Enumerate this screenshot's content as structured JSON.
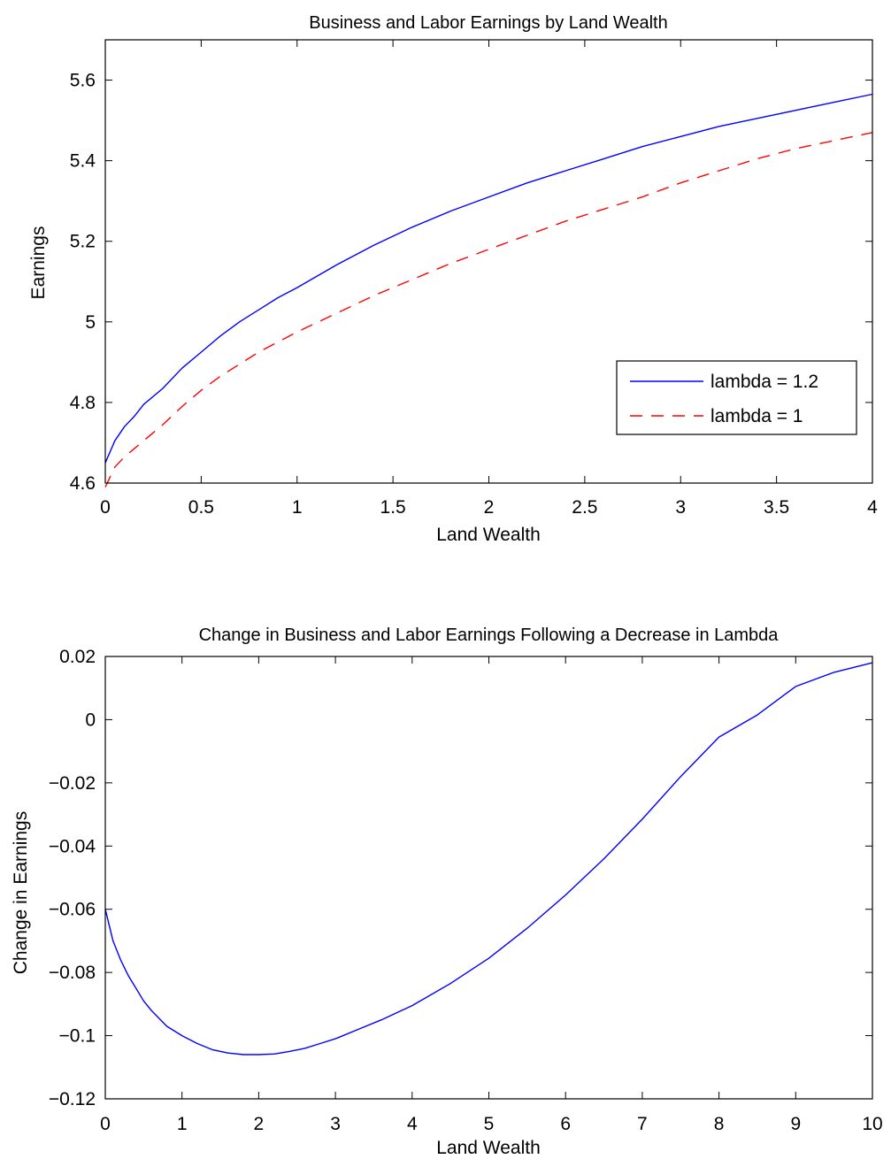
{
  "chart_data": [
    {
      "type": "line",
      "title": "Business and Labor Earnings by Land Wealth",
      "xlabel": "Land Wealth",
      "ylabel": "Earnings",
      "xlim": [
        0,
        4
      ],
      "ylim": [
        4.6,
        5.7
      ],
      "xticks": [
        0,
        0.5,
        1,
        1.5,
        2,
        2.5,
        3,
        3.5,
        4
      ],
      "xtick_labels": [
        "0",
        "0.5",
        "1",
        "1.5",
        "2",
        "2.5",
        "3",
        "3.5",
        "4"
      ],
      "yticks": [
        4.6,
        4.8,
        5.0,
        5.2,
        5.4,
        5.6
      ],
      "ytick_labels": [
        "4.6",
        "4.8",
        "5",
        "5.2",
        "5.4",
        "5.6"
      ],
      "grid": false,
      "legend_position": "lower-right",
      "series": [
        {
          "name": "lambda = 1.2",
          "color": "#0000ff",
          "style": "solid",
          "x": [
            0,
            0.05,
            0.1,
            0.15,
            0.2,
            0.3,
            0.4,
            0.5,
            0.6,
            0.7,
            0.8,
            0.9,
            1.0,
            1.2,
            1.4,
            1.6,
            1.8,
            2.0,
            2.2,
            2.4,
            2.6,
            2.8,
            3.0,
            3.2,
            3.4,
            3.6,
            3.8,
            4.0
          ],
          "y": [
            4.65,
            4.705,
            4.74,
            4.765,
            4.795,
            4.835,
            4.885,
            4.925,
            4.965,
            5.0,
            5.03,
            5.06,
            5.085,
            5.14,
            5.19,
            5.235,
            5.275,
            5.31,
            5.345,
            5.375,
            5.405,
            5.435,
            5.46,
            5.485,
            5.505,
            5.525,
            5.545,
            5.565
          ]
        },
        {
          "name": "lambda = 1",
          "color": "#ff0000",
          "style": "dashed",
          "x": [
            0,
            0.05,
            0.1,
            0.15,
            0.2,
            0.3,
            0.4,
            0.5,
            0.6,
            0.7,
            0.8,
            0.9,
            1.0,
            1.2,
            1.4,
            1.6,
            1.8,
            2.0,
            2.2,
            2.4,
            2.6,
            2.8,
            3.0,
            3.2,
            3.4,
            3.6,
            3.8,
            4.0
          ],
          "y": [
            4.59,
            4.64,
            4.665,
            4.685,
            4.705,
            4.745,
            4.79,
            4.83,
            4.865,
            4.895,
            4.925,
            4.95,
            4.975,
            5.02,
            5.065,
            5.105,
            5.145,
            5.18,
            5.215,
            5.25,
            5.28,
            5.31,
            5.345,
            5.375,
            5.405,
            5.43,
            5.45,
            5.47
          ]
        }
      ]
    },
    {
      "type": "line",
      "title": "Change in Business and Labor Earnings Following a Decrease in Lambda",
      "xlabel": "Land Wealth",
      "ylabel": "Change in Earnings",
      "xlim": [
        0,
        10
      ],
      "ylim": [
        -0.12,
        0.02
      ],
      "xticks": [
        0,
        1,
        2,
        3,
        4,
        5,
        6,
        7,
        8,
        9,
        10
      ],
      "xtick_labels": [
        "0",
        "1",
        "2",
        "3",
        "4",
        "5",
        "6",
        "7",
        "8",
        "9",
        "10"
      ],
      "yticks": [
        -0.12,
        -0.1,
        -0.08,
        -0.06,
        -0.04,
        -0.02,
        0,
        0.02
      ],
      "ytick_labels": [
        "−0.12",
        "−0.1",
        "−0.08",
        "−0.06",
        "−0.04",
        "−0.02",
        "0",
        "0.02"
      ],
      "grid": false,
      "series": [
        {
          "color": "#0000ff",
          "style": "solid",
          "x": [
            0,
            0.1,
            0.2,
            0.3,
            0.4,
            0.5,
            0.6,
            0.8,
            1.0,
            1.2,
            1.4,
            1.6,
            1.8,
            2.0,
            2.2,
            2.4,
            2.6,
            2.8,
            3.0,
            3.3,
            3.6,
            4.0,
            4.5,
            5.0,
            5.5,
            6.0,
            6.5,
            7.0,
            7.5,
            8.0,
            8.5,
            9.0,
            9.5,
            10.0
          ],
          "y": [
            -0.06,
            -0.07,
            -0.076,
            -0.081,
            -0.085,
            -0.089,
            -0.092,
            -0.097,
            -0.1,
            -0.1025,
            -0.1045,
            -0.1055,
            -0.106,
            -0.106,
            -0.1058,
            -0.105,
            -0.104,
            -0.1025,
            -0.101,
            -0.098,
            -0.095,
            -0.0905,
            -0.0835,
            -0.0755,
            -0.066,
            -0.0555,
            -0.044,
            -0.0315,
            -0.018,
            -0.0055,
            0.0015,
            0.0105,
            0.015,
            0.018
          ]
        }
      ]
    }
  ],
  "legend": {
    "entries": [
      "lambda = 1.2",
      "lambda = 1"
    ]
  }
}
